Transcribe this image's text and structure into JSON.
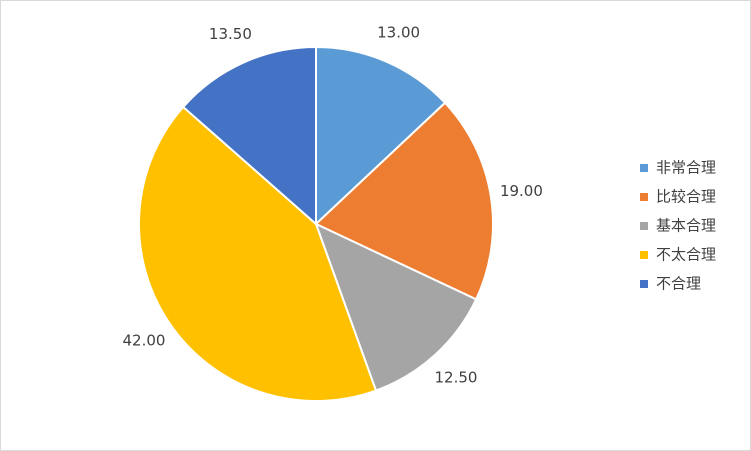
{
  "chart_data": {
    "type": "pie",
    "categories": [
      "非常合理",
      "比较合理",
      "基本合理",
      "不太合理",
      "不合理"
    ],
    "values": [
      13,
      19,
      12.5,
      42,
      13.5
    ],
    "value_labels": [
      "13.00",
      "19.00",
      "12.50",
      "42.00",
      "13.50"
    ],
    "colors": [
      "#5b9bd5",
      "#ed7d31",
      "#a5a5a5",
      "#ffc000",
      "#4472c4"
    ],
    "legend": "right"
  }
}
